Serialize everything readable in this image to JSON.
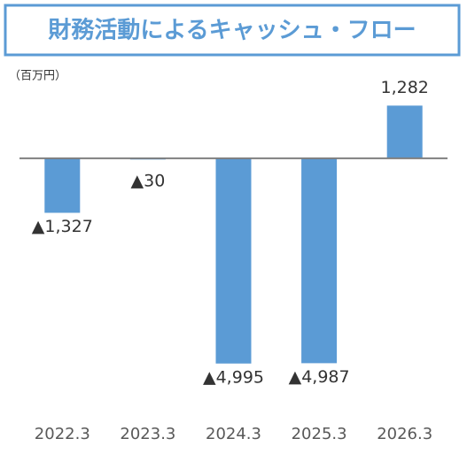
{
  "chart_data": {
    "type": "bar",
    "title": "財務活動によるキャッシュ・フロー",
    "y_axis_label": "（百万円）",
    "categories": [
      "2022.3",
      "2023.3",
      "2024.3",
      "2025.3",
      "2026.3"
    ],
    "values": [
      -1327,
      -30,
      -4995,
      -4987,
      1282
    ],
    "value_labels": [
      "▲1,327",
      "▲30",
      "▲4,995",
      "▲4,987",
      "1,282"
    ],
    "color": "#5b9bd5",
    "ylim": [
      -5000,
      2000
    ]
  }
}
